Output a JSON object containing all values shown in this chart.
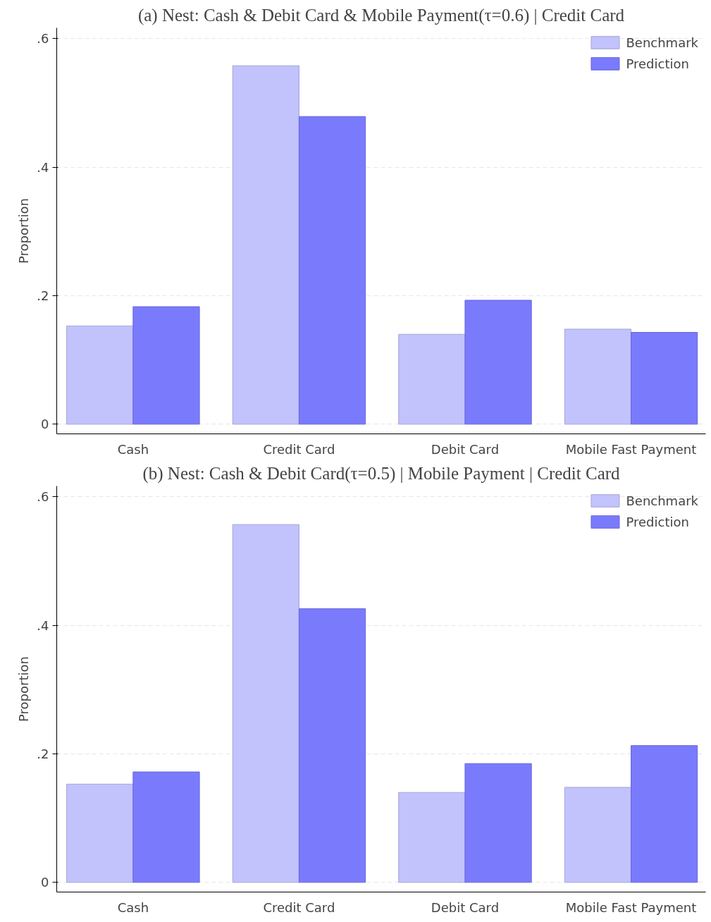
{
  "chart_data": [
    {
      "type": "bar",
      "title": "(a) Nest: Cash & Debit Card & Mobile Payment(τ=0.6) | Credit Card",
      "ylabel": "Proportion",
      "categories": [
        "Cash",
        "Credit Card",
        "Debit Card",
        "Mobile Fast Payment"
      ],
      "series": [
        {
          "name": "Benchmark",
          "color": "#c2c2fd",
          "values": [
            0.153,
            0.558,
            0.14,
            0.148
          ]
        },
        {
          "name": "Prediction",
          "color": "#7a7afd",
          "values": [
            0.183,
            0.479,
            0.193,
            0.143
          ]
        }
      ],
      "ylim": [
        -0.015,
        0.617
      ],
      "yticks": [
        0,
        {
          "value": 0.2,
          "label": ".2"
        },
        {
          "value": 0.4,
          "label": ".4"
        },
        {
          "value": 0.6,
          "label": ".6"
        }
      ],
      "grid": "y",
      "legend": "top right"
    },
    {
      "type": "bar",
      "title": "(b) Nest: Cash & Debit Card(τ=0.5) | Mobile Payment | Credit Card",
      "ylabel": "Proportion",
      "categories": [
        "Cash",
        "Credit Card",
        "Debit Card",
        "Mobile Fast Payment"
      ],
      "series": [
        {
          "name": "Benchmark",
          "color": "#c2c2fd",
          "values": [
            0.153,
            0.557,
            0.14,
            0.148
          ]
        },
        {
          "name": "Prediction",
          "color": "#7a7afd",
          "values": [
            0.172,
            0.426,
            0.185,
            0.213
          ]
        }
      ],
      "ylim": [
        -0.015,
        0.617
      ],
      "yticks": [
        0,
        {
          "value": 0.2,
          "label": ".2"
        },
        {
          "value": 0.4,
          "label": ".4"
        },
        {
          "value": 0.6,
          "label": ".6"
        }
      ],
      "grid": "y",
      "legend": "top right"
    }
  ]
}
